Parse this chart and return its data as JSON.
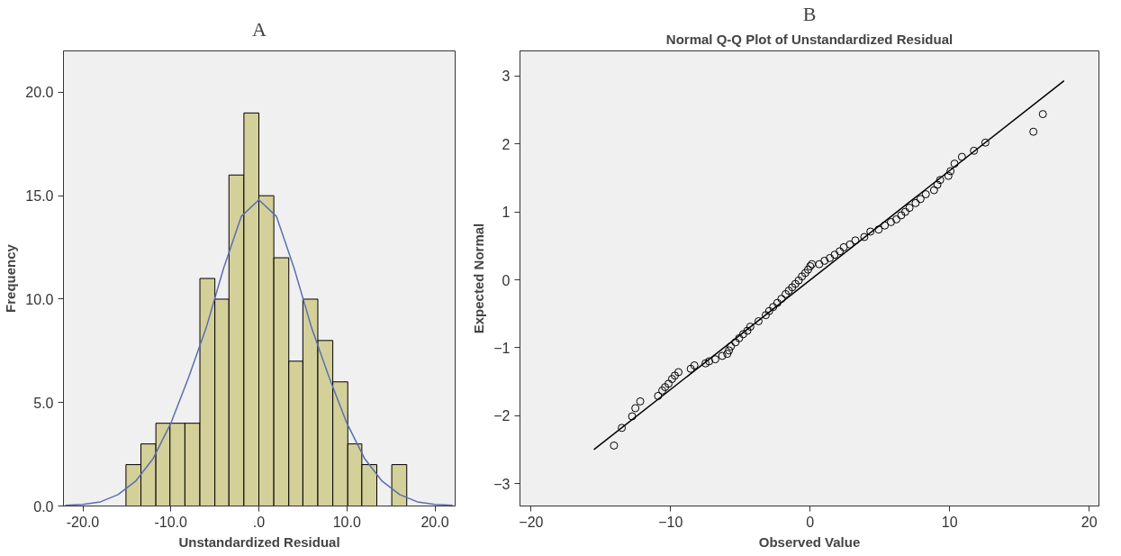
{
  "chart_data": [
    {
      "type": "histogram",
      "title": "A",
      "xlabel": "Unstandardized Residual",
      "ylabel": "Frequency",
      "bins": [
        -15.1,
        -13.4,
        -11.7,
        -10.1,
        -8.4,
        -6.7,
        -5.0,
        -3.4,
        -1.7,
        0,
        1.7,
        3.4,
        5.0,
        6.7,
        8.4,
        10.1,
        11.7,
        13.4,
        15.1,
        16.8
      ],
      "series": [
        {
          "color": "#d4d09a",
          "values": [
            2,
            3,
            4,
            4,
            4,
            11,
            10,
            16,
            19,
            15,
            12,
            7,
            10,
            8,
            6,
            3,
            2,
            0,
            2
          ]
        },
        {
          "type": "line",
          "color": "#5b6eb0",
          "x": [
            -22,
            -20,
            -18,
            -16,
            -14,
            -12,
            -10,
            -8,
            -6,
            -4,
            -2,
            0,
            2,
            4,
            6,
            8,
            10,
            12,
            14,
            16,
            18,
            20,
            22
          ],
          "values": [
            0.03,
            0.08,
            0.2,
            0.55,
            1.2,
            2.3,
            4.0,
            6.2,
            8.6,
            11.5,
            14.0,
            14.8,
            14.0,
            11.5,
            8.6,
            6.2,
            4.0,
            2.3,
            1.2,
            0.55,
            0.2,
            0.08,
            0.03
          ]
        }
      ],
      "xlim": [
        -22.2,
        22.3
      ],
      "ylim": [
        0,
        22
      ],
      "xticks": [
        {
          "value": -20,
          "label": "-20.0"
        },
        {
          "value": -10,
          "label": "-10.0"
        },
        {
          "value": 0,
          "label": ".0"
        },
        {
          "value": 10,
          "label": "10.0"
        },
        {
          "value": 20,
          "label": "20.0"
        }
      ],
      "yticks": [
        {
          "value": 0,
          "label": "0.0"
        },
        {
          "value": 5,
          "label": "5.0"
        },
        {
          "value": 10,
          "label": "10.0"
        },
        {
          "value": 15,
          "label": "15.0"
        },
        {
          "value": 20,
          "label": "20.0"
        }
      ],
      "grid": false
    },
    {
      "type": "scatter",
      "title": "B",
      "subtitle": "Normal Q-Q Plot of Unstandardized Residual",
      "xlabel": "Observed Value",
      "ylabel": "Expected Normal",
      "series": [
        {
          "marker": "circle",
          "color": "#000000",
          "x": [
            -14.06,
            -13.5,
            -12.76,
            -12.53,
            -12.18,
            -10.9,
            -10.6,
            -10.4,
            -10.15,
            -9.9,
            -9.7,
            -9.44,
            -8.56,
            -8.3,
            -7.5,
            -7.24,
            -6.8,
            -6.3,
            -5.94,
            -5.82,
            -5.68,
            -5.35,
            -5.09,
            -4.8,
            -4.5,
            -4.29,
            -3.7,
            -3.18,
            -2.94,
            -2.65,
            -2.35,
            -2.06,
            -1.76,
            -1.53,
            -1.29,
            -1.06,
            -0.82,
            -0.59,
            -0.35,
            -0.15,
            0.0,
            0.12,
            0.65,
            1.03,
            1.41,
            1.76,
            2.12,
            2.41,
            2.85,
            3.24,
            3.88,
            4.32,
            4.91,
            5.35,
            5.79,
            6.18,
            6.53,
            6.82,
            7.12,
            7.56,
            7.91,
            8.29,
            8.88,
            9.12,
            9.32,
            9.91,
            10.06,
            10.35,
            10.88,
            11.74,
            12.56,
            16.0,
            16.68
          ],
          "values": [
            -2.44,
            -2.18,
            -2.01,
            -1.89,
            -1.79,
            -1.71,
            -1.63,
            -1.58,
            -1.53,
            -1.46,
            -1.41,
            -1.36,
            -1.31,
            -1.26,
            -1.23,
            -1.2,
            -1.17,
            -1.12,
            -1.09,
            -1.04,
            -0.98,
            -0.92,
            -0.86,
            -0.8,
            -0.75,
            -0.69,
            -0.61,
            -0.52,
            -0.46,
            -0.4,
            -0.34,
            -0.28,
            -0.21,
            -0.16,
            -0.11,
            -0.06,
            -0.01,
            0.05,
            0.1,
            0.15,
            0.2,
            0.23,
            0.23,
            0.28,
            0.32,
            0.37,
            0.42,
            0.48,
            0.52,
            0.58,
            0.63,
            0.71,
            0.74,
            0.8,
            0.85,
            0.89,
            0.95,
            1.0,
            1.06,
            1.13,
            1.19,
            1.26,
            1.32,
            1.4,
            1.47,
            1.53,
            1.6,
            1.71,
            1.81,
            1.9,
            2.02,
            2.18,
            2.44
          ]
        },
        {
          "type": "line",
          "color": "#000000",
          "x": [
            -15.5,
            18.2
          ],
          "values": [
            -2.5,
            2.93
          ]
        }
      ],
      "xlim": [
        -20.8,
        20.7
      ],
      "ylim": [
        -3.33,
        3.37
      ],
      "xticks": [
        -20,
        -10,
        0,
        10,
        20
      ],
      "yticks": [
        -3,
        -2,
        -1,
        0,
        1,
        2,
        3
      ],
      "grid": false
    }
  ]
}
